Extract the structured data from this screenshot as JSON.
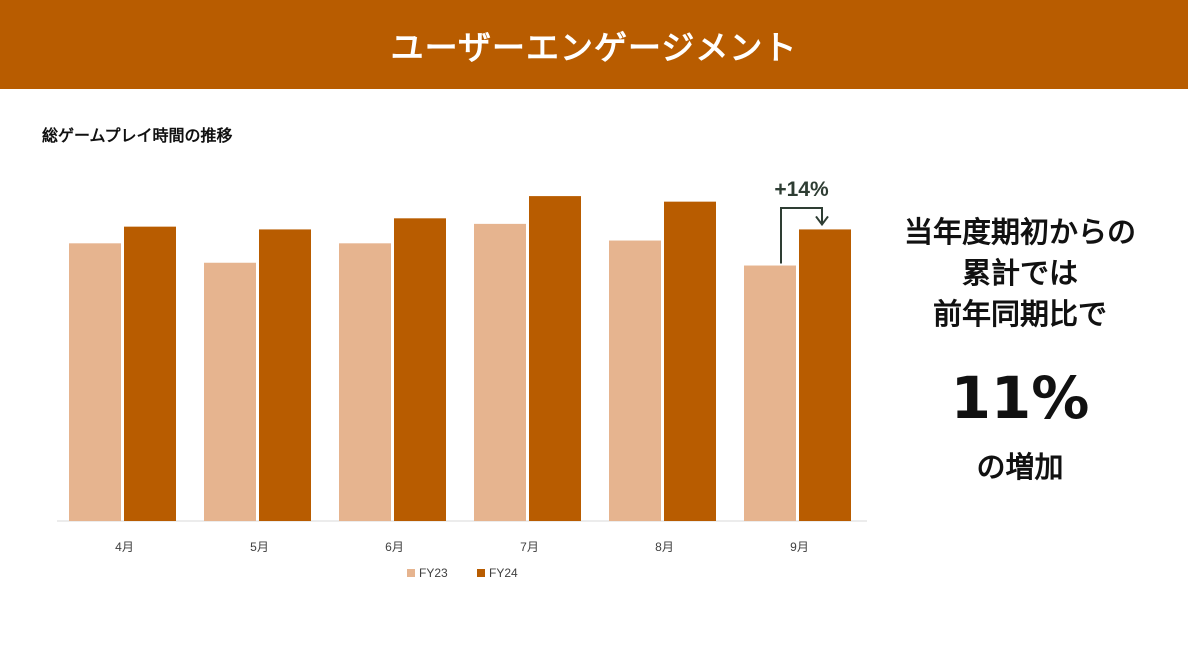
{
  "header": {
    "title": "ユーザーエンゲージメント"
  },
  "chart_title": "総ゲームプレイ時間の推移",
  "colors": {
    "header_bg": "#b85c00",
    "fy23": "#e6b48f",
    "fy24": "#b85c00",
    "annotation": "#2e3d33"
  },
  "chart_data": {
    "type": "bar",
    "title": "総ゲームプレイ時間の推移",
    "categories": [
      "4月",
      "5月",
      "6月",
      "7月",
      "8月",
      "9月"
    ],
    "series": [
      {
        "name": "FY23",
        "values": [
          100,
          93,
          100,
          107,
          101,
          92
        ]
      },
      {
        "name": "FY24",
        "values": [
          106,
          105,
          109,
          117,
          115,
          105
        ]
      }
    ],
    "ylim": [
      0,
      130
    ],
    "grid": false,
    "legend": "bottom",
    "annotation": {
      "text": "+14%",
      "category": "9月"
    }
  },
  "side": {
    "lines": [
      "当年度期初からの",
      "累計では",
      "前年同期比で"
    ],
    "big": "11%",
    "after": "の増加"
  }
}
